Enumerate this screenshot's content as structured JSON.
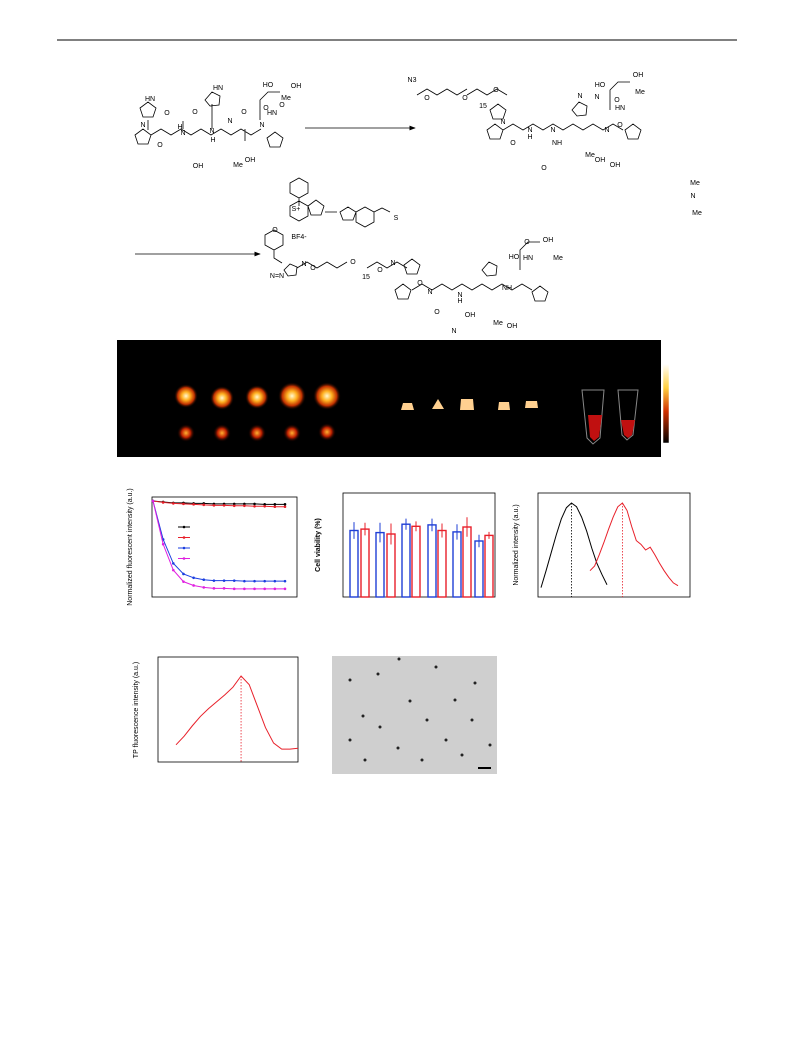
{
  "scheme": {
    "start_labels": [
      "HN",
      "O",
      "N",
      "O",
      "H",
      "N",
      "O",
      "N",
      "H",
      "N",
      "HN",
      "O",
      "N",
      "O",
      "OH",
      "HO",
      "O",
      "HN",
      "OH",
      "Me",
      "Me",
      "OH"
    ],
    "peg_labels": [
      "N3",
      "O",
      "O",
      "15",
      "O",
      "N",
      "O",
      "N",
      "H",
      "N",
      "O",
      "N",
      "O",
      "OH",
      "HO",
      "O",
      "HN",
      "OH",
      "Me",
      "Me",
      "OH",
      "NH",
      "N",
      "N"
    ],
    "probe_labels": [
      "S+",
      "BF4-",
      "N",
      "Me",
      "Me",
      "S",
      "O",
      "N",
      "N=N",
      "O",
      "O",
      "15",
      "O",
      "N",
      "O",
      "N",
      "O",
      "N",
      "H",
      "N",
      "OH",
      "HO",
      "O",
      "HN",
      "OH",
      "Me",
      "Me",
      "OH",
      "NH"
    ]
  },
  "figures": {
    "photostability": {
      "ylabel": "Normalized fluorescent intensity (a.u.)",
      "series": [
        {
          "color": "#000000",
          "values": [
            1,
            0.99,
            0.98,
            0.98,
            0.975,
            0.975,
            0.97,
            0.97,
            0.97,
            0.97,
            0.97,
            0.965,
            0.965,
            0.965
          ]
        },
        {
          "color": "#e8202a",
          "values": [
            1,
            0.985,
            0.975,
            0.97,
            0.965,
            0.96,
            0.955,
            0.955,
            0.95,
            0.95,
            0.945,
            0.945,
            0.94,
            0.94
          ]
        },
        {
          "color": "#1a3ee0",
          "values": [
            1,
            0.6,
            0.35,
            0.24,
            0.2,
            0.18,
            0.17,
            0.17,
            0.17,
            0.165,
            0.165,
            0.165,
            0.165,
            0.165
          ]
        },
        {
          "color": "#e020e0",
          "values": [
            1,
            0.55,
            0.28,
            0.16,
            0.12,
            0.1,
            0.09,
            0.09,
            0.085,
            0.085,
            0.085,
            0.085,
            0.085,
            0.085
          ]
        }
      ]
    },
    "viability": {
      "ylabel": "Cell viability (%)",
      "colors": [
        "#1f3fd6",
        "#e8202a"
      ],
      "values": [
        95,
        97,
        92,
        90,
        104,
        101,
        103,
        95,
        93,
        100,
        80,
        88
      ],
      "errors": [
        12,
        9,
        14,
        15,
        8,
        7,
        9,
        10,
        11,
        14,
        9,
        5
      ]
    },
    "spectra": {
      "ylabel": "Normalized intensity (a.u.)",
      "series": [
        {
          "color": "#000000",
          "values": [
            0.1,
            0.28,
            0.47,
            0.66,
            0.83,
            0.95,
            1.0,
            0.96,
            0.85,
            0.7,
            0.52,
            0.36,
            0.24,
            0.13
          ]
        },
        {
          "color": "#e8202a",
          "values": [
            0.28,
            0.33,
            0.45,
            0.58,
            0.72,
            0.85,
            0.96,
            1.0,
            0.92,
            0.75,
            0.6,
            0.56,
            0.5,
            0.53,
            0.45,
            0.36,
            0.28,
            0.21,
            0.15,
            0.12
          ]
        }
      ]
    },
    "tp": {
      "ylabel": "TP fluorescence intensity (a.u.)",
      "color": "#e8202a",
      "values": [
        0.2,
        0.3,
        0.42,
        0.53,
        0.62,
        0.7,
        0.78,
        0.87,
        1.0,
        0.9,
        0.65,
        0.4,
        0.22,
        0.15,
        0.15,
        0.16
      ]
    }
  }
}
